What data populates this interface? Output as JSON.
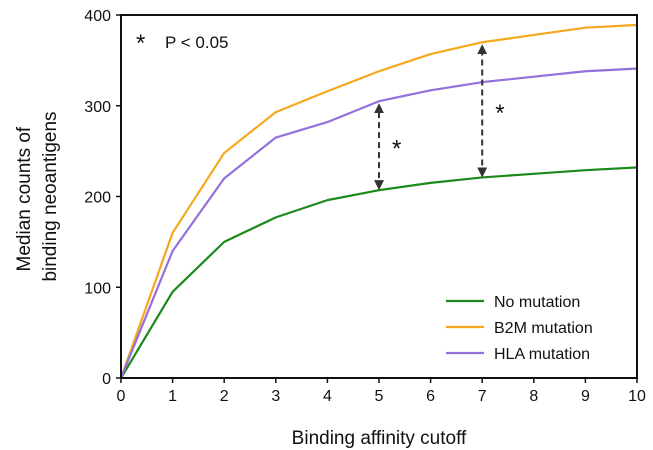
{
  "chart_data": {
    "type": "line",
    "title": "",
    "xlabel": "Binding affinity cutoff",
    "ylabel_lines": [
      "Median counts of",
      "binding neoantigens"
    ],
    "x": [
      0,
      1,
      2,
      3,
      4,
      5,
      6,
      7,
      8,
      9,
      10
    ],
    "xlim": [
      0,
      10
    ],
    "ylim": [
      0,
      400
    ],
    "xticks": [
      0,
      1,
      2,
      3,
      4,
      5,
      6,
      7,
      8,
      9,
      10
    ],
    "yticks": [
      0,
      100,
      200,
      300,
      400
    ],
    "grid": false,
    "legend_position": "bottom-right",
    "series": [
      {
        "name": "No mutation",
        "color": "#1b8a1b",
        "values": [
          0,
          95,
          150,
          177,
          196,
          207,
          215,
          221,
          225,
          229,
          232
        ]
      },
      {
        "name": "B2M mutation",
        "color": "#f5a81c",
        "values": [
          0,
          160,
          248,
          293,
          316,
          338,
          357,
          370,
          378,
          386,
          389
        ]
      },
      {
        "name": "HLA mutation",
        "color": "#9370db",
        "values": [
          0,
          140,
          220,
          265,
          282,
          305,
          317,
          326,
          332,
          338,
          341
        ]
      }
    ],
    "annotations": {
      "significance_legend": {
        "symbol": "*",
        "text": "P < 0.05"
      },
      "arrows": [
        {
          "x": 5,
          "y_from": 207,
          "y_to": 305,
          "label": "*"
        },
        {
          "x": 7,
          "y_from": 221,
          "y_to": 370,
          "label": "*"
        }
      ]
    }
  }
}
